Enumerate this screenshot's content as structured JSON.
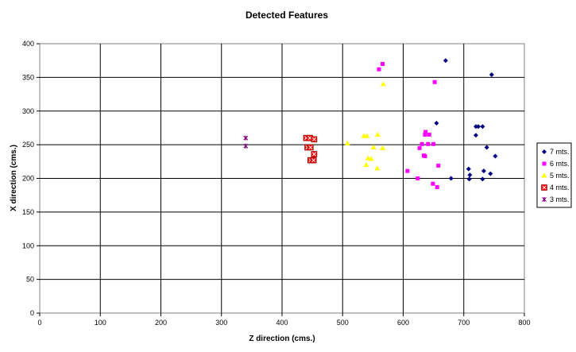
{
  "chart_data": {
    "type": "scatter",
    "title": "Detected Features",
    "xlabel": "Z direction (cms.)",
    "ylabel": "X direction (cms.)",
    "xlim": [
      0,
      800
    ],
    "ylim": [
      0,
      400
    ],
    "xticks": [
      "0",
      "100",
      "200",
      "300",
      "400",
      "500",
      "600",
      "700",
      "800"
    ],
    "yticks": [
      "0",
      "50",
      "100",
      "150",
      "200",
      "250",
      "300",
      "350",
      "400"
    ],
    "grid": true,
    "legend_position": "right",
    "series": [
      {
        "name": "7 mts.",
        "color": "#000080",
        "marker": "diamond",
        "points": [
          [
            670,
            375
          ],
          [
            746,
            354
          ],
          [
            655,
            282
          ],
          [
            720,
            277
          ],
          [
            724,
            277
          ],
          [
            731,
            277
          ],
          [
            720,
            264
          ],
          [
            738,
            246
          ],
          [
            752,
            233
          ],
          [
            708,
            214
          ],
          [
            733,
            211
          ],
          [
            710,
            205
          ],
          [
            744,
            207
          ],
          [
            679,
            200
          ],
          [
            709,
            199
          ],
          [
            731,
            199
          ]
        ]
      },
      {
        "name": "6 mts.",
        "color": "#ff00ff",
        "marker": "square",
        "points": [
          [
            566,
            370
          ],
          [
            560,
            362
          ],
          [
            652,
            343
          ],
          [
            637,
            269
          ],
          [
            636,
            265
          ],
          [
            643,
            265
          ],
          [
            631,
            251
          ],
          [
            641,
            251
          ],
          [
            650,
            251
          ],
          [
            627,
            245
          ],
          [
            634,
            234
          ],
          [
            636,
            233
          ],
          [
            658,
            219
          ],
          [
            607,
            211
          ],
          [
            624,
            200
          ],
          [
            649,
            192
          ],
          [
            656,
            187
          ]
        ]
      },
      {
        "name": "5 mts.",
        "color": "#ffff00",
        "marker": "triangle",
        "points": [
          [
            567,
            340
          ],
          [
            558,
            265
          ],
          [
            535,
            263
          ],
          [
            540,
            263
          ],
          [
            508,
            252
          ],
          [
            551,
            246
          ],
          [
            566,
            245
          ],
          [
            542,
            230
          ],
          [
            547,
            229
          ],
          [
            539,
            220
          ],
          [
            557,
            215
          ]
        ]
      },
      {
        "name": "4 mts.",
        "color": "#ff0000",
        "marker": "x-square",
        "points": [
          [
            440,
            260
          ],
          [
            446,
            260
          ],
          [
            453,
            258
          ],
          [
            442,
            246
          ],
          [
            447,
            246
          ],
          [
            453,
            236
          ],
          [
            447,
            227
          ],
          [
            452,
            227
          ]
        ]
      },
      {
        "name": "3 mts.",
        "color": "#800080",
        "marker": "asterisk",
        "points": [
          [
            340,
            260
          ],
          [
            340,
            248
          ]
        ]
      }
    ]
  }
}
